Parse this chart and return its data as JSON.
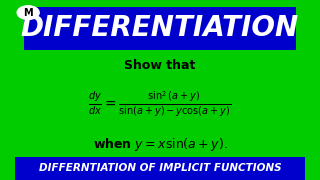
{
  "bg_color": "#00cc00",
  "title_text": "DIFFERENTIATION",
  "title_bg": "#0000cc",
  "title_color": "#ffffff",
  "show_that": "Show that",
  "formula_main": "$\\frac{dy}{dx} = \\frac{\\sin^2(a + y)}{\\sin(a + y) - y\\cos(a + y)}$",
  "formula_when": "$\\mathbf{when}\\ y = x\\sin(a + y).$",
  "footer_text": "DIFFERNTIATION OF IMPLICIT FUNCTIONS",
  "footer_bg": "#0000cc",
  "footer_color": "#ffffff",
  "logo_text": "M",
  "math_color": "#000000"
}
